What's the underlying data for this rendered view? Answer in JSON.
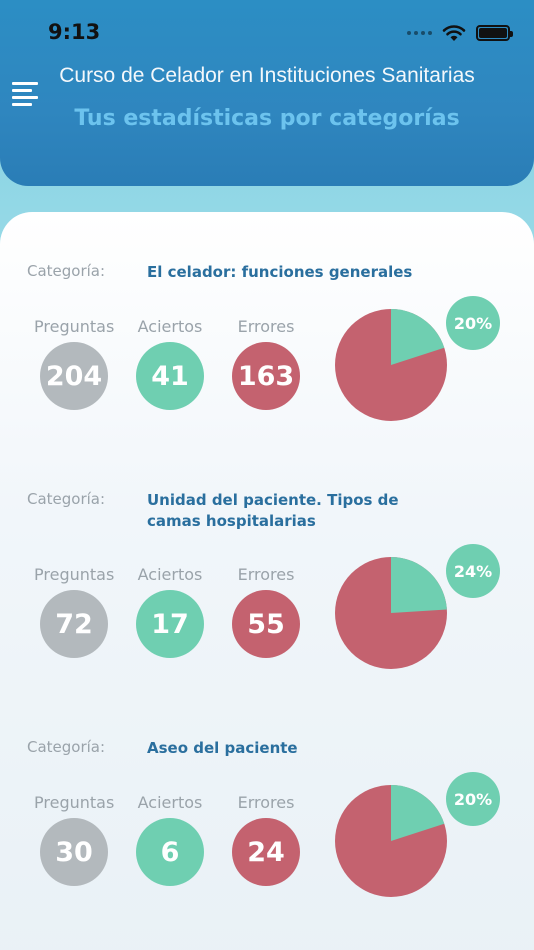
{
  "status_bar": {
    "time": "9:13"
  },
  "header": {
    "app_title": "Curso de Celador en Instituciones Sanitarias",
    "page_title": "Tus estadísticas por categorías"
  },
  "labels": {
    "category": "Categoría:",
    "questions": "Preguntas",
    "correct": "Aciertos",
    "errors": "Errores"
  },
  "categories": [
    {
      "name": "El celador: funciones generales",
      "questions": "204",
      "correct": "41",
      "errors": "163",
      "percent_label": "20%",
      "percent": 20
    },
    {
      "name": "Unidad del paciente. Tipos de camas hospitalarias",
      "questions": "72",
      "correct": "17",
      "errors": "55",
      "percent_label": "24%",
      "percent": 24
    },
    {
      "name": "Aseo del paciente",
      "questions": "30",
      "correct": "6",
      "errors": "24",
      "percent_label": "20%",
      "percent": 20
    }
  ],
  "colors": {
    "header": "#2f86bf",
    "accent_title": "#6cc3ee",
    "questions": "#b3b9bd",
    "correct": "#6fcfb1",
    "errors": "#c4626f"
  }
}
